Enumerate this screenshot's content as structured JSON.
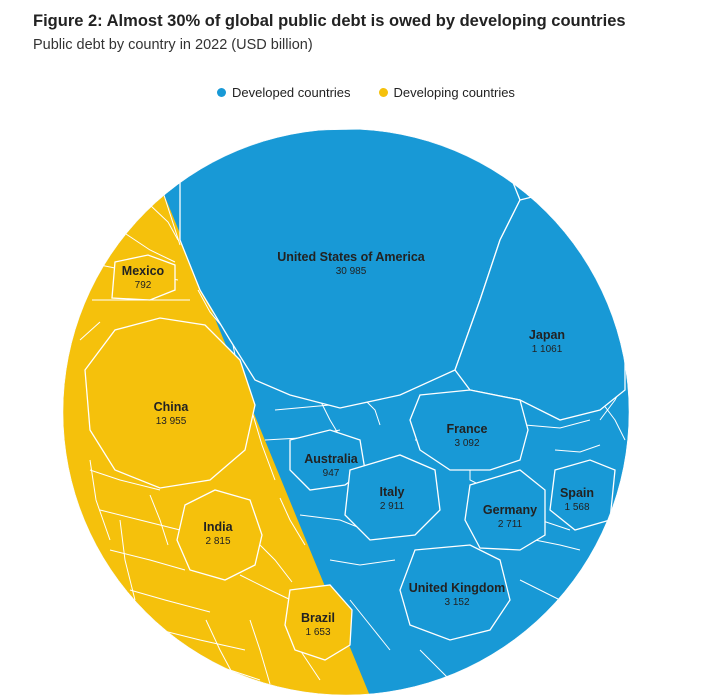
{
  "header": {
    "title": "Figure 2: Almost 30% of global public debt is owed by developing countries",
    "subtitle": "Public debt by country in 2022 (USD billion)"
  },
  "colors": {
    "developed": "#1899d6",
    "developing": "#f5c10c",
    "cell_border": "#ffffff"
  },
  "chart_data": {
    "type": "voronoi-treemap",
    "legend": [
      {
        "name": "Developed countries",
        "color": "#1899d6"
      },
      {
        "name": "Developing countries",
        "color": "#f5c10c"
      }
    ],
    "legend_position": "top",
    "units": "USD billion",
    "year": "2022",
    "labeled_countries": [
      {
        "name": "United States of America",
        "value_label": "30 985",
        "value": 30985,
        "group": "developed"
      },
      {
        "name": "Japan",
        "value_label": "1 1061",
        "value": 11061,
        "group": "developed"
      },
      {
        "name": "France",
        "value_label": "3 092",
        "value": 3092,
        "group": "developed"
      },
      {
        "name": "Australia",
        "value_label": "947",
        "value": 947,
        "group": "developed"
      },
      {
        "name": "Italy",
        "value_label": "2 911",
        "value": 2911,
        "group": "developed"
      },
      {
        "name": "Germany",
        "value_label": "2 711",
        "value": 2711,
        "group": "developed"
      },
      {
        "name": "Spain",
        "value_label": "1 568",
        "value": 1568,
        "group": "developed"
      },
      {
        "name": "United Kingdom",
        "value_label": "3 152",
        "value": 3152,
        "group": "developed"
      },
      {
        "name": "Mexico",
        "value_label": "792",
        "value": 792,
        "group": "developing"
      },
      {
        "name": "China",
        "value_label": "13 955",
        "value": 13955,
        "group": "developing"
      },
      {
        "name": "India",
        "value_label": "2 815",
        "value": 2815,
        "group": "developing"
      },
      {
        "name": "Brazil",
        "value_label": "1 653",
        "value": 1653,
        "group": "developing"
      }
    ]
  }
}
